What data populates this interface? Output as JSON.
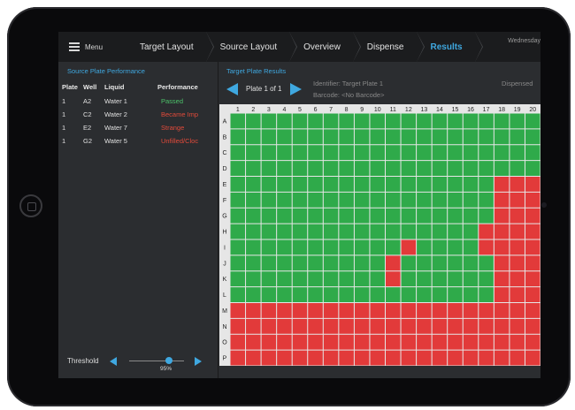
{
  "nav": {
    "menu_label": "Menu",
    "crumbs": [
      "Target Layout",
      "Source Layout",
      "Overview",
      "Dispense",
      "Results"
    ],
    "active_index": 4,
    "date_text": "Wednesday"
  },
  "source_panel": {
    "title": "Source Plate Performance",
    "columns": [
      "Plate",
      "Well",
      "Liquid",
      "Performance"
    ],
    "rows": [
      {
        "plate": "1",
        "well": "A2",
        "liquid": "Water 1",
        "performance": "Passed",
        "status": "pass"
      },
      {
        "plate": "1",
        "well": "C2",
        "liquid": "Water 2",
        "performance": "Became Imp",
        "status": "fail"
      },
      {
        "plate": "1",
        "well": "E2",
        "liquid": "Water 7",
        "performance": "Strange",
        "status": "fail"
      },
      {
        "plate": "1",
        "well": "G2",
        "liquid": "Water 5",
        "performance": "Unfilled/Cloc",
        "status": "fail"
      }
    ],
    "threshold_label": "Threshold",
    "threshold_value": "95%",
    "threshold_fraction": 0.95
  },
  "target_panel": {
    "title": "Target Plate Results",
    "plate_label": "Plate 1 of 1",
    "identifier": "Identifier: Target Plate 1",
    "barcode": "Barcode: <No Barcode>",
    "dispensed_label": "Dispensed",
    "col_labels": [
      "1",
      "2",
      "3",
      "4",
      "5",
      "6",
      "7",
      "8",
      "9",
      "10",
      "11",
      "12",
      "13",
      "14",
      "15",
      "16",
      "17",
      "18",
      "19",
      "20"
    ],
    "row_labels": [
      "A",
      "B",
      "C",
      "D",
      "E",
      "F",
      "G",
      "H",
      "I",
      "J",
      "K",
      "L",
      "M",
      "N",
      "O",
      "P"
    ],
    "wells": [
      "GGGGGGGGGGGGGGGGGGGG",
      "GGGGGGGGGGGGGGGGGGGG",
      "GGGGGGGGGGGGGGGGGGGG",
      "GGGGGGGGGGGGGGGGGGGG",
      "GGGGGGGGGGGGGGGGGRRR",
      "GGGGGGGGGGGGGGGGGRRR",
      "GGGGGGGGGGGGGGGGGRRR",
      "GGGGGGGGGGGGGGGGRRRR",
      "GGGGGGGGGGGRGGGGRRRR",
      "GGGGGGGGGGRGGGGGGRRR",
      "GGGGGGGGGGRGGGGGGRRR",
      "GGGGGGGGGGGGGGGGGRRR",
      "RRRRRRRRRRRRRRRRRRRR",
      "RRRRRRRRRRRRRRRRRRRR",
      "RRRRRRRRRRRRRRRRRRRR",
      "RRRRRRRRRRRRRRRRRRRR"
    ],
    "colors": {
      "pass": "#2faa4a",
      "fail": "#e23a3a",
      "grid": "#ffffff",
      "header_bg": "#e6e6e6"
    }
  },
  "colors": {
    "accent": "#3fa8e0",
    "pass_text": "#4cc36a",
    "fail_text": "#e24a3a"
  }
}
